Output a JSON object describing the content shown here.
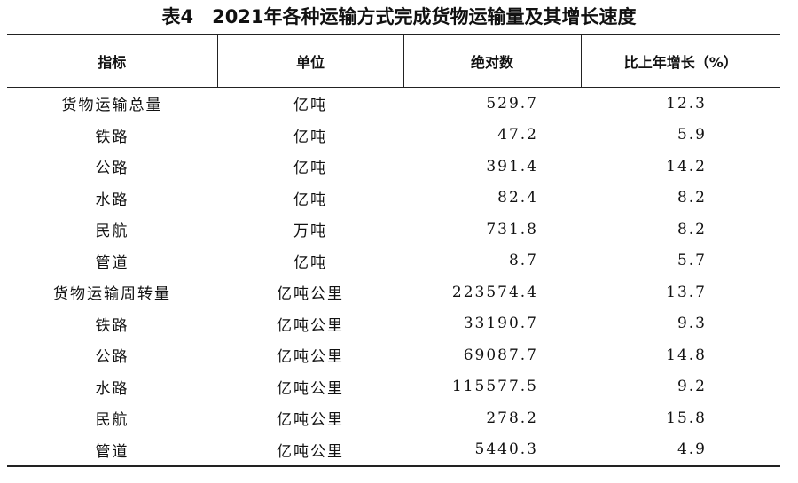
{
  "title": "表4　2021年各种运输方式完成货物运输量及其增长速度",
  "table": {
    "header": [
      "指标",
      "单位",
      "绝对数",
      "比上年增长（%）"
    ],
    "rows": [
      [
        "货物运输总量",
        "亿吨",
        "529.7",
        "12.3"
      ],
      [
        "铁路",
        "亿吨",
        "47.2",
        "5.9"
      ],
      [
        "公路",
        "亿吨",
        "391.4",
        "14.2"
      ],
      [
        "水路",
        "亿吨",
        "82.4",
        "8.2"
      ],
      [
        "民航",
        "万吨",
        "731.8",
        "8.2"
      ],
      [
        "管道",
        "亿吨",
        "8.7",
        "5.7"
      ],
      [
        "货物运输周转量",
        "亿吨公里",
        "223574.4",
        "13.7"
      ],
      [
        "铁路",
        "亿吨公里",
        "33190.7",
        "9.3"
      ],
      [
        "公路",
        "亿吨公里",
        "69087.7",
        "14.8"
      ],
      [
        "水路",
        "亿吨公里",
        "115577.5",
        "9.2"
      ],
      [
        "民航",
        "亿吨公里",
        "278.2",
        "15.8"
      ],
      [
        "管道",
        "亿吨公里",
        "5440.3",
        "4.9"
      ]
    ]
  }
}
